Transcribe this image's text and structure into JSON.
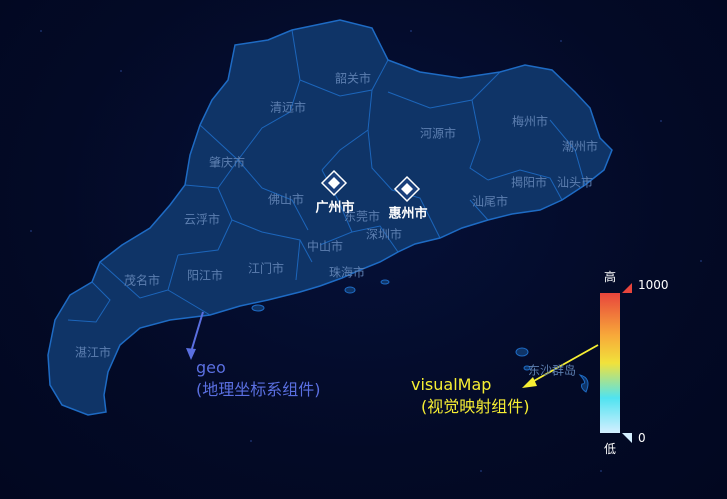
{
  "map": {
    "cities": [
      {
        "id": "shaoguan",
        "label": "韶关市"
      },
      {
        "id": "qingyuan",
        "label": "清远市"
      },
      {
        "id": "heyuan",
        "label": "河源市"
      },
      {
        "id": "meizhou",
        "label": "梅州市"
      },
      {
        "id": "chaozhou",
        "label": "潮州市"
      },
      {
        "id": "zhaoqing",
        "label": "肇庆市"
      },
      {
        "id": "foshan",
        "label": "佛山市"
      },
      {
        "id": "jieyang",
        "label": "揭阳市"
      },
      {
        "id": "shantou",
        "label": "汕头市"
      },
      {
        "id": "yunfu",
        "label": "云浮市"
      },
      {
        "id": "dongguan",
        "label": "东莞市"
      },
      {
        "id": "shanwei",
        "label": "汕尾市"
      },
      {
        "id": "shenzhen",
        "label": "深圳市"
      },
      {
        "id": "zhongshan",
        "label": "中山市"
      },
      {
        "id": "jiangmen",
        "label": "江门市"
      },
      {
        "id": "zhuhai",
        "label": "珠海市"
      },
      {
        "id": "maoming",
        "label": "茂名市"
      },
      {
        "id": "yangjiang",
        "label": "阳江市"
      },
      {
        "id": "zhanjiang",
        "label": "湛江市"
      },
      {
        "id": "dongsha",
        "label": "东沙群岛"
      }
    ],
    "markers": [
      {
        "id": "guangzhou",
        "label": "广州市"
      },
      {
        "id": "huizhou",
        "label": "惠州市"
      }
    ]
  },
  "annotations": {
    "geo_title": "geo",
    "geo_subtitle": "(地理坐标系组件)",
    "visualmap_title": "visualMap",
    "visualmap_subtitle": "(视觉映射组件)"
  },
  "visual_map": {
    "high_text": "高",
    "low_text": "低",
    "max": "1000",
    "min": "0",
    "colors": [
      "#e8453c",
      "#f7a83a",
      "#f1e23b",
      "#50e3f0",
      "#d4efff"
    ]
  },
  "colors": {
    "region_fill": "#0f3467",
    "region_border": "#1e6bc4",
    "label": "#5d7fb0",
    "annot_geo": "#5a6fe0",
    "annot_vm": "#f7ef33"
  }
}
